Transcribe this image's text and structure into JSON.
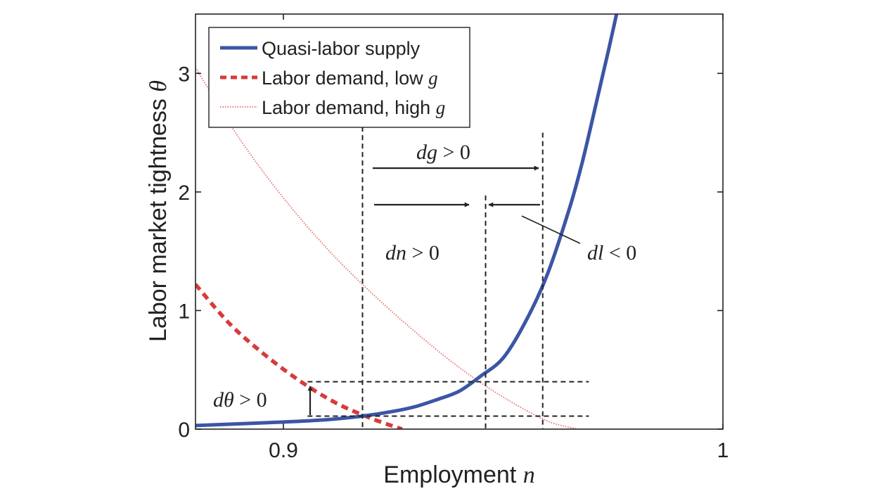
{
  "chart_data": {
    "type": "line",
    "xlabel": "Employment",
    "xlabel_symbol": "n",
    "ylabel": "Labor market tightness",
    "ylabel_symbol": "θ",
    "xlim": [
      0.88,
      1.0
    ],
    "ylim": [
      0,
      3.5
    ],
    "x_ticks": [
      {
        "value": 0.9,
        "label": "0.9"
      },
      {
        "value": 1.0,
        "label": "1"
      }
    ],
    "y_ticks": [
      {
        "value": 0,
        "label": "0"
      },
      {
        "value": 1,
        "label": "1"
      },
      {
        "value": 2,
        "label": "2"
      },
      {
        "value": 3,
        "label": "3"
      }
    ],
    "legend_position": "top-left",
    "series": [
      {
        "name": "Quasi-labor supply",
        "legend_text": "Quasi-labor supply",
        "legend_symbol": "",
        "style": "solid",
        "color": "#3c55a5",
        "x": [
          0.88,
          0.9,
          0.91,
          0.918,
          0.925,
          0.93,
          0.935,
          0.94,
          0.945,
          0.95,
          0.955,
          0.96,
          0.965,
          0.968,
          0.971,
          0.974,
          0.977
        ],
        "y": [
          0.03,
          0.06,
          0.08,
          0.11,
          0.15,
          0.19,
          0.25,
          0.32,
          0.45,
          0.6,
          0.9,
          1.3,
          1.85,
          2.25,
          2.72,
          3.2,
          3.7
        ]
      },
      {
        "name": "Labor demand, low g",
        "legend_text": "Labor demand, low",
        "legend_symbol": "g",
        "style": "dashed",
        "color": "#d93a3a",
        "x": [
          0.88,
          0.888,
          0.896,
          0.904,
          0.912,
          0.92,
          0.927
        ],
        "y": [
          1.22,
          0.88,
          0.62,
          0.4,
          0.22,
          0.09,
          0.0
        ]
      },
      {
        "name": "Labor demand, high g",
        "legend_text": "Labor demand, high",
        "legend_symbol": "g",
        "style": "dotted",
        "color": "#e67b7b",
        "x": [
          0.88,
          0.89,
          0.9,
          0.91,
          0.92,
          0.93,
          0.94,
          0.95,
          0.96,
          0.967
        ],
        "y": [
          3.05,
          2.45,
          1.95,
          1.52,
          1.15,
          0.82,
          0.52,
          0.27,
          0.07,
          0.0
        ]
      }
    ],
    "reference_lines": {
      "vertical": [
        {
          "x": 0.918,
          "y_top": 2.55
        },
        {
          "x": 0.946,
          "y_top": 1.97
        },
        {
          "x": 0.959,
          "y_top": 2.5
        }
      ],
      "horizontal": [
        {
          "y": 0.4,
          "x_start": 0.9055,
          "x_end": 0.9695
        },
        {
          "y": 0.11,
          "x_start": 0.9055,
          "x_end": 0.9695
        }
      ]
    },
    "annotations": [
      {
        "id": "dg",
        "symbol": "dg",
        "text": " > 0",
        "x": 0.936,
        "y": 2.38
      },
      {
        "id": "dn",
        "symbol": "dn",
        "text": " > 0",
        "x": 0.932,
        "y": 1.5
      },
      {
        "id": "dl",
        "symbol": "dl",
        "text": " < 0",
        "x": 0.9755,
        "y": 1.5
      },
      {
        "id": "dtheta",
        "symbol": "dθ",
        "text": " > 0",
        "x": 0.893,
        "y": 0.24
      }
    ]
  }
}
